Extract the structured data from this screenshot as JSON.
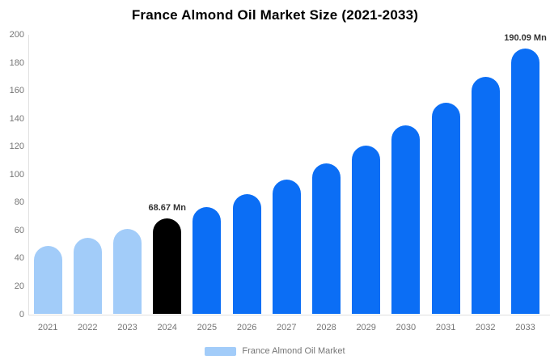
{
  "page": {
    "background": "#ffffff"
  },
  "chart_data": {
    "type": "bar",
    "title": "France Almond Oil Market Size (2021-2033)",
    "xlabel": "",
    "ylabel": "",
    "categories": [
      "2021",
      "2022",
      "2023",
      "2024",
      "2025",
      "2026",
      "2027",
      "2028",
      "2029",
      "2030",
      "2031",
      "2032",
      "2033"
    ],
    "series": [
      {
        "name": "France Almond Oil Market",
        "values": [
          48.9,
          54.8,
          61.3,
          68.67,
          76.9,
          86.1,
          96.4,
          108.0,
          120.9,
          135.4,
          151.6,
          169.8,
          190.09
        ]
      }
    ],
    "unit": "Mn",
    "ylim": [
      0,
      200
    ],
    "ytick_step": 20,
    "grid": "off",
    "legend_position": "bottom-center",
    "bar_colors": [
      "#a2ccf9",
      "#a2ccf9",
      "#a2ccf9",
      "#000000",
      "#0b6ef5",
      "#0b6ef5",
      "#0b6ef5",
      "#0b6ef5",
      "#0b6ef5",
      "#0b6ef5",
      "#0b6ef5",
      "#0b6ef5",
      "#0b6ef5"
    ],
    "annotations": [
      {
        "index": 3,
        "text": "68.67 Mn"
      },
      {
        "index": 12,
        "text": "190.09 Mn"
      }
    ],
    "legend": {
      "label": "France Almond Oil Market",
      "swatch_color": "#a2ccf9"
    }
  },
  "colors": {
    "axis_line": "#e0e0e0",
    "tick_label": "#757575",
    "annotation_label": "#333333",
    "title": "#000000",
    "historical_bar": "#a2ccf9",
    "current_bar": "#000000",
    "forecast_bar": "#0b6ef5"
  }
}
